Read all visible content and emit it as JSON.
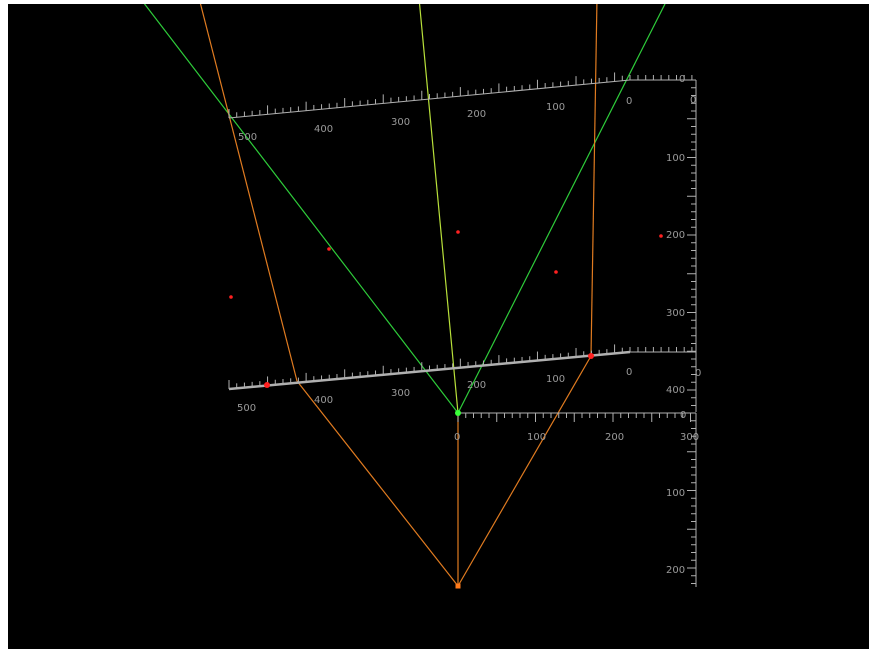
{
  "colors": {
    "background": "#000000",
    "frame": "#ffffff",
    "ruler": "#b0b0b0",
    "ruler_label": "#9a9a9a",
    "ray_green": "#2ecc3a",
    "ray_yellow_green": "#b8e03a",
    "ray_orange": "#e07b20",
    "point_red": "#ff2020",
    "point_green": "#39ff39",
    "point_orange": "#ff7a1a"
  },
  "rulers": {
    "top_slanted": {
      "labels": [
        "500",
        "400",
        "300",
        "200",
        "100",
        "0"
      ]
    },
    "right_vertical_upper": {
      "labels": [
        "0",
        "100",
        "200",
        "300",
        "400"
      ]
    },
    "middle_slanted": {
      "labels": [
        "500",
        "400",
        "300",
        "200",
        "100",
        "0"
      ]
    },
    "horizontal": {
      "labels": [
        "0",
        "100",
        "200",
        "300"
      ]
    },
    "right_vertical_lower": {
      "labels": [
        "0",
        "100",
        "200"
      ]
    }
  },
  "markers": {
    "red_dots": 7,
    "green_apex": 1,
    "orange_apex": 1
  }
}
